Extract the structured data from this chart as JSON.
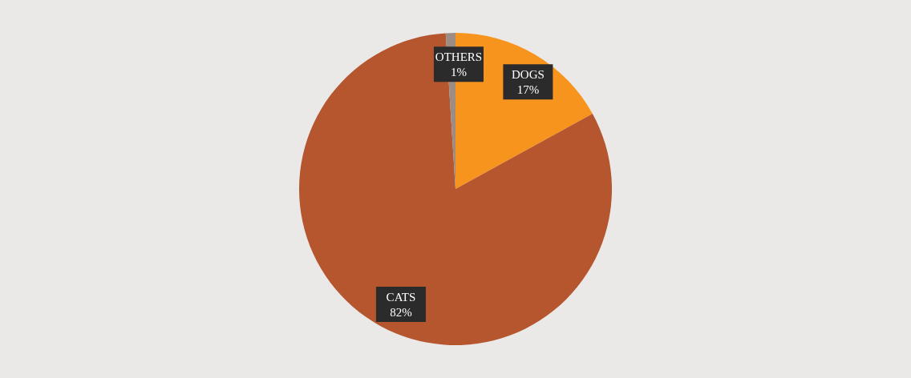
{
  "chart_data": {
    "type": "pie",
    "categories": [
      "DOGS",
      "CATS",
      "OTHERS"
    ],
    "values": [
      17,
      82,
      1
    ],
    "colors": [
      "#f7941d",
      "#b5562e",
      "#9c8c84"
    ],
    "value_labels": [
      "17%",
      "82%",
      "1%"
    ]
  }
}
